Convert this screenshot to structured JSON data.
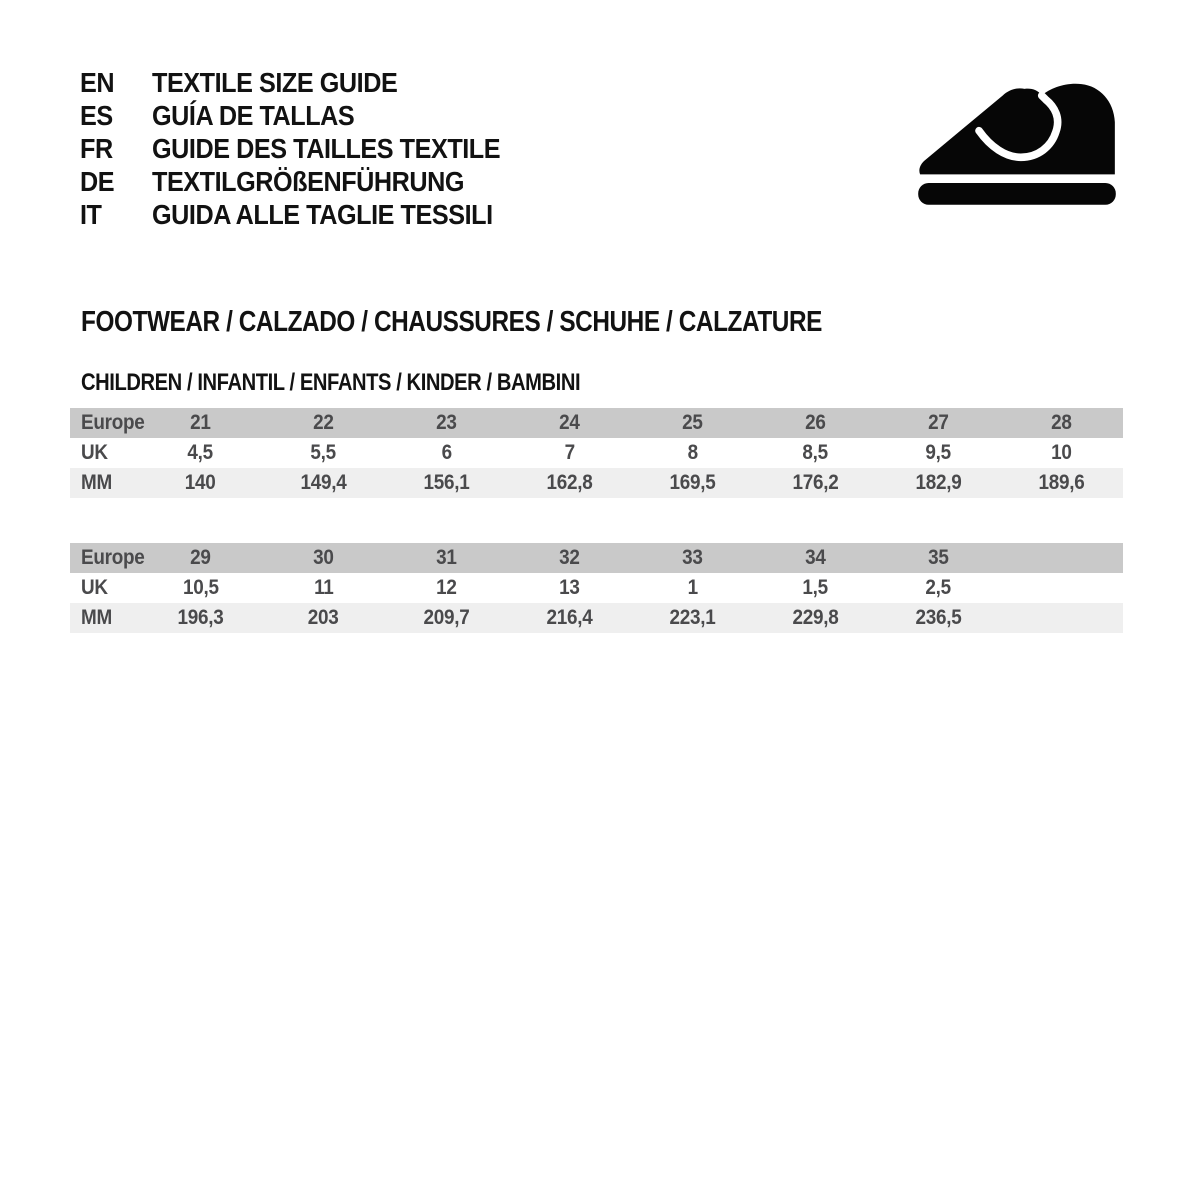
{
  "languages": [
    {
      "code": "EN",
      "label": "TEXTILE SIZE GUIDE"
    },
    {
      "code": "ES",
      "label": "GUÍA DE TALLAS"
    },
    {
      "code": "FR",
      "label": "GUIDE DES TAILLES TEXTILE"
    },
    {
      "code": "DE",
      "label": "TEXTILGRÖßENFÜHRUNG"
    },
    {
      "code": "IT",
      "label": "GUIDA ALLE TAGLIE TESSILI"
    }
  ],
  "icons": {
    "shoe": "children-shoe-icon"
  },
  "section": {
    "title": "FOOTWEAR / CALZADO / CHAUSSURES / SCHUHE / CALZATURE",
    "subtitle": "CHILDREN / INFANTIL / ENFANTS / KINDER / BAMBINI"
  },
  "tables": [
    {
      "rows": [
        {
          "label": "Europe",
          "values": [
            "21",
            "22",
            "23",
            "24",
            "25",
            "26",
            "27",
            "28"
          ]
        },
        {
          "label": "UK",
          "values": [
            "4,5",
            "5,5",
            "6",
            "7",
            "8",
            "8,5",
            "9,5",
            "10"
          ]
        },
        {
          "label": "MM",
          "values": [
            "140",
            "149,4",
            "156,1",
            "162,8",
            "169,5",
            "176,2",
            "182,9",
            "189,6"
          ]
        }
      ]
    },
    {
      "rows": [
        {
          "label": "Europe",
          "values": [
            "29",
            "30",
            "31",
            "32",
            "33",
            "34",
            "35",
            ""
          ]
        },
        {
          "label": "UK",
          "values": [
            "10,5",
            "11",
            "12",
            "13",
            "1",
            "1,5",
            "2,5",
            ""
          ]
        },
        {
          "label": "MM",
          "values": [
            "196,3",
            "203",
            "209,7",
            "216,4",
            "223,1",
            "229,8",
            "236,5",
            ""
          ]
        }
      ]
    }
  ],
  "colors": {
    "ink": "#121212",
    "header_row": "#c9c9c9",
    "alt_row": "#efefef",
    "table_text": "#4a4a4c",
    "shoe": "#060606"
  }
}
